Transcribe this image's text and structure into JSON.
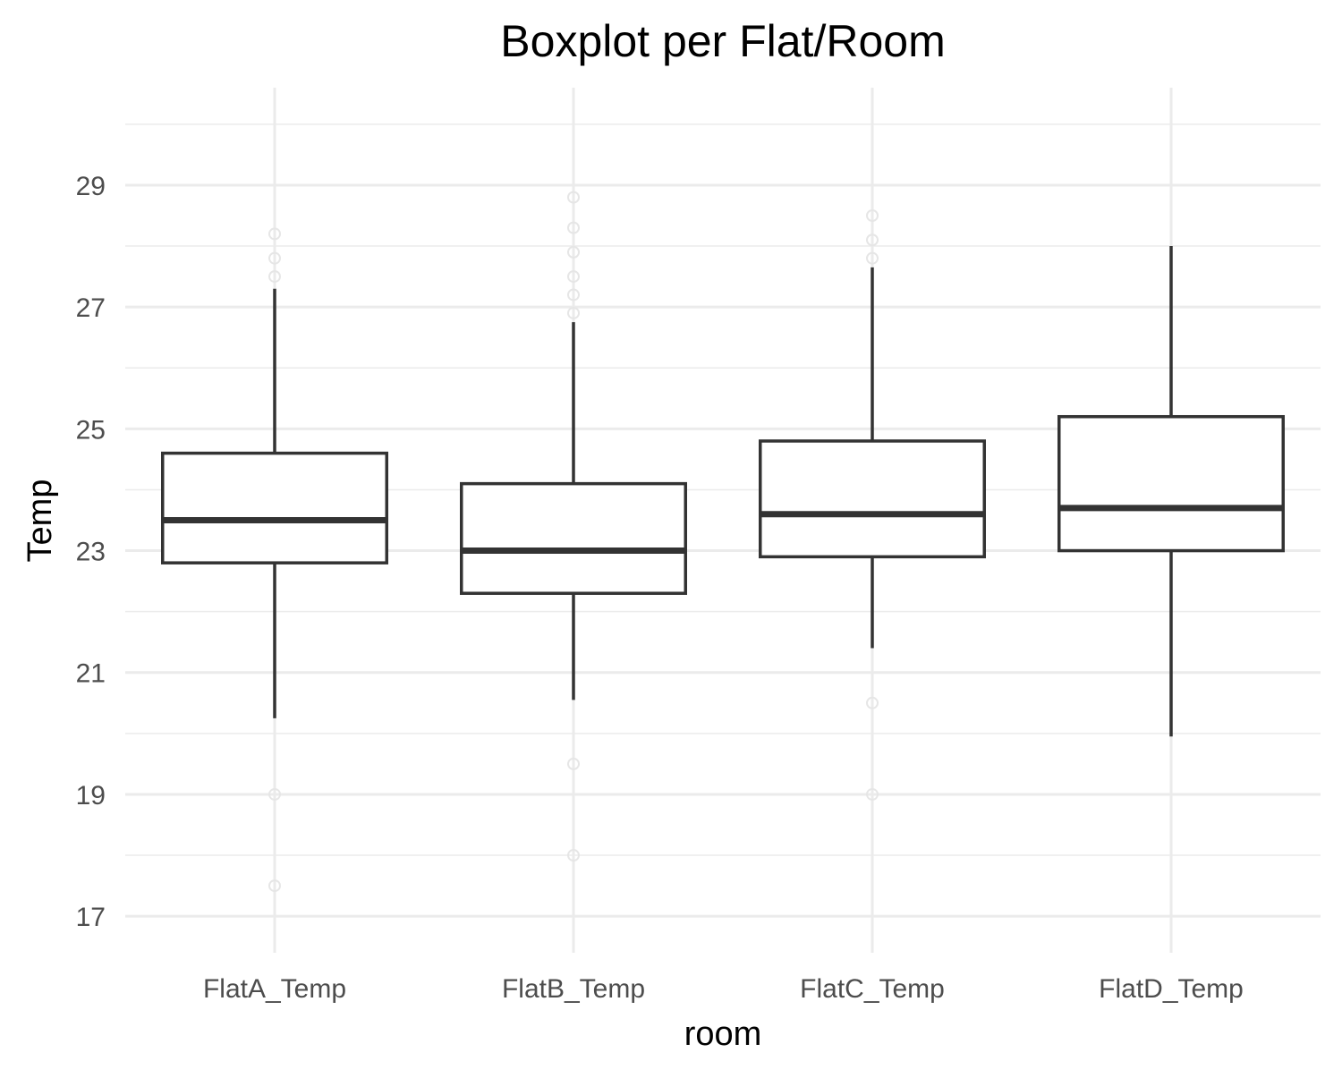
{
  "chart_data": {
    "type": "boxplot",
    "title": "Boxplot per Flat/Room",
    "xlabel": "room",
    "ylabel": "Temp",
    "ylim": [
      16.4,
      30.6
    ],
    "yticks": [
      17,
      19,
      21,
      23,
      25,
      27,
      29
    ],
    "yticks_minor": [
      18,
      20,
      22,
      24,
      26,
      28,
      30
    ],
    "grid": true,
    "legend": "none",
    "categories": [
      "FlatA_Temp",
      "FlatB_Temp",
      "FlatC_Temp",
      "FlatD_Temp"
    ],
    "boxes": [
      {
        "category": "FlatA_Temp",
        "whisker_low": 20.25,
        "q1": 22.8,
        "median": 23.5,
        "q3": 24.6,
        "whisker_high": 27.3,
        "outliers_low": [
          19.0,
          17.5
        ],
        "outliers_high": [
          27.5,
          27.8,
          28.2
        ]
      },
      {
        "category": "FlatB_Temp",
        "whisker_low": 20.55,
        "q1": 22.3,
        "median": 23.0,
        "q3": 24.1,
        "whisker_high": 26.75,
        "outliers_low": [
          19.5,
          18.0
        ],
        "outliers_high": [
          26.9,
          27.2,
          27.5,
          27.9,
          28.3,
          28.8
        ]
      },
      {
        "category": "FlatC_Temp",
        "whisker_low": 21.4,
        "q1": 22.9,
        "median": 23.6,
        "q3": 24.8,
        "whisker_high": 27.65,
        "outliers_low": [
          20.5,
          19.0
        ],
        "outliers_high": [
          27.8,
          28.1,
          28.5
        ]
      },
      {
        "category": "FlatD_Temp",
        "whisker_low": 19.95,
        "q1": 23.0,
        "median": 23.7,
        "q3": 25.2,
        "whisker_high": 28.0,
        "outliers_low": [],
        "outliers_high": []
      }
    ],
    "colors": {
      "box_stroke": "#333333",
      "box_fill": "#ffffff",
      "grid": "#ebebeb",
      "outlier": "#e6e6e6",
      "tick_text": "#4d4d4d"
    }
  }
}
